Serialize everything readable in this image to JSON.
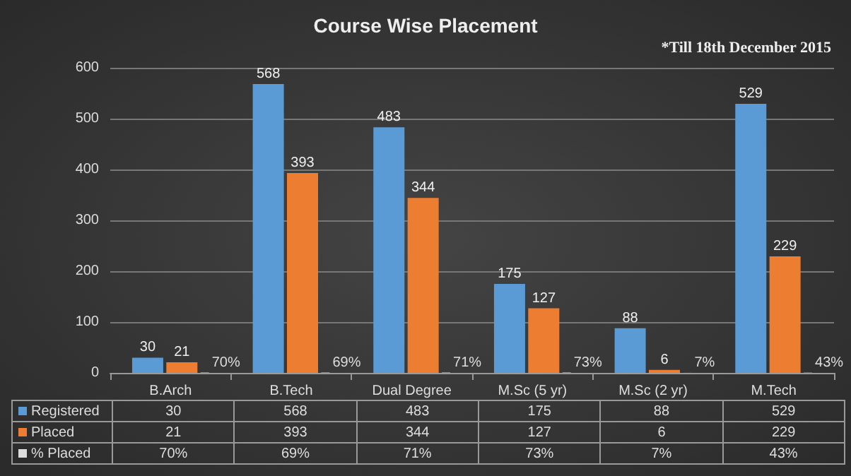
{
  "chart_data": {
    "type": "bar",
    "title": "Course Wise Placement",
    "annotations": [
      "*Till 18th December 2015"
    ],
    "categories": [
      "B.Arch",
      "B.Tech",
      "Dual Degree",
      "M.Sc (5 yr)",
      "M.Sc (2 yr)",
      "M.Tech"
    ],
    "series": [
      {
        "name": "Registered",
        "color": "#5b9bd5",
        "values": [
          30,
          568,
          483,
          175,
          88,
          529
        ],
        "value_labels": [
          "30",
          "568",
          "483",
          "175",
          "88",
          "529"
        ]
      },
      {
        "name": "Placed",
        "color": "#ed7d31",
        "values": [
          21,
          393,
          344,
          127,
          6,
          229
        ],
        "value_labels": [
          "21",
          "393",
          "344",
          "127",
          "6",
          "229"
        ]
      },
      {
        "name": "% Placed",
        "color": "#dddddd",
        "values": [
          0.7,
          0.69,
          0.71,
          0.73,
          0.07,
          0.43
        ],
        "value_labels": [
          "70%",
          "69%",
          "71%",
          "73%",
          "7%",
          "43%"
        ]
      }
    ],
    "ylim": [
      0,
      600
    ],
    "yticks": [
      0,
      100,
      200,
      300,
      400,
      500,
      600
    ],
    "grid": "y",
    "legend": "bottom"
  }
}
